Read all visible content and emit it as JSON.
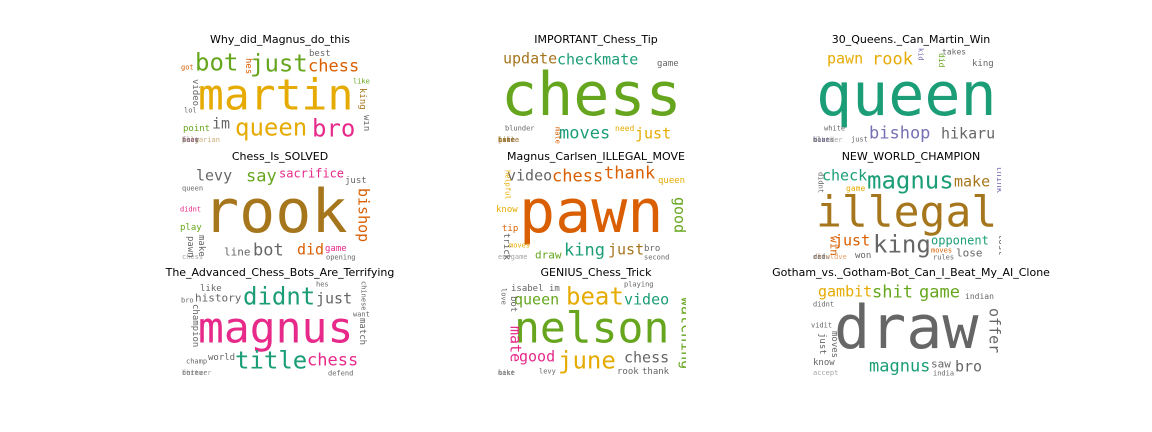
{
  "palette": [
    "#1b9e77",
    "#d95f02",
    "#7570b3",
    "#e7298a",
    "#66a61e",
    "#e6ab02",
    "#a6761d",
    "#666666"
  ],
  "panels": [
    {
      "title": "Why_did_Magnus_do_this",
      "words": [
        {
          "text": "martin",
          "color": "#e6ab02",
          "weight": 5
        },
        {
          "text": "just",
          "color": "#66a61e",
          "weight": 4
        },
        {
          "text": "queen",
          "color": "#e6ab02",
          "weight": 4
        },
        {
          "text": "bot",
          "color": "#66a61e",
          "weight": 3
        },
        {
          "text": "bro",
          "color": "#e7298a",
          "weight": 3
        },
        {
          "text": "chess",
          "color": "#d95f02",
          "weight": 3
        },
        {
          "text": "im",
          "color": "#666666",
          "weight": 2
        },
        {
          "text": "king",
          "color": "#a6761d",
          "weight": 1
        },
        {
          "text": "bulgarian",
          "color": "#a6761d",
          "weight": 1
        },
        {
          "text": "best",
          "color": "#666666",
          "weight": 1
        },
        {
          "text": "point",
          "color": "#66a61e",
          "weight": 1
        },
        {
          "text": "video",
          "color": "#666666",
          "weight": 1
        },
        {
          "text": "like",
          "color": "#66a61e",
          "weight": 1
        },
        {
          "text": "lol",
          "color": "#666666",
          "weight": 1
        },
        {
          "text": "play",
          "color": "#666666",
          "weight": 1
        },
        {
          "text": "hes",
          "color": "#d95f02",
          "weight": 1
        },
        {
          "text": "fear",
          "color": "#e7298a",
          "weight": 1
        },
        {
          "text": "know",
          "color": "#666666",
          "weight": 1
        },
        {
          "text": "got",
          "color": "#d95f02",
          "weight": 1
        },
        {
          "text": "win",
          "color": "#666666",
          "weight": 1
        },
        {
          "text": "fact",
          "color": "#666666",
          "weight": 1
        }
      ]
    },
    {
      "title": "IMPORTANT_Chess_Tip",
      "words": [
        {
          "text": "chess",
          "color": "#66a61e",
          "weight": 5
        },
        {
          "text": "moves",
          "color": "#1b9e77",
          "weight": 4
        },
        {
          "text": "checkmate",
          "color": "#1b9e77",
          "weight": 2
        },
        {
          "text": "piece",
          "color": "#7570b3",
          "weight": 2
        },
        {
          "text": "update",
          "color": "#a6761d",
          "weight": 2
        },
        {
          "text": "just",
          "color": "#e6ab02",
          "weight": 2
        },
        {
          "text": "need",
          "color": "#e6ab02",
          "weight": 2
        },
        {
          "text": "mate",
          "color": "#d95f02",
          "weight": 2
        },
        {
          "text": "game",
          "color": "#666666",
          "weight": 1
        },
        {
          "text": "blunder",
          "color": "#666666",
          "weight": 1
        },
        {
          "text": "turn",
          "color": "#666666",
          "weight": 1
        },
        {
          "text": "bro",
          "color": "#e6ab02",
          "weight": 1
        },
        {
          "text": "like",
          "color": "#a6761d",
          "weight": 1
        },
        {
          "text": "gonna",
          "color": "#a6761d",
          "weight": 1
        },
        {
          "text": "life",
          "color": "#666666",
          "weight": 1
        },
        {
          "text": "isnt",
          "color": "#666666",
          "weight": 1
        },
        {
          "text": "table",
          "color": "#a6761d",
          "weight": 1
        },
        {
          "text": "base",
          "color": "#a6761d",
          "weight": 1
        }
      ]
    },
    {
      "title": "30_Queens._Can_Martin_Win",
      "words": [
        {
          "text": "queen",
          "color": "#1b9e77",
          "weight": 5
        },
        {
          "text": "bishop",
          "color": "#7570b3",
          "weight": 4
        },
        {
          "text": "rook",
          "color": "#e6ab02",
          "weight": 3
        },
        {
          "text": "did",
          "color": "#66a61e",
          "weight": 2
        },
        {
          "text": "pawn",
          "color": "#e6ab02",
          "weight": 2
        },
        {
          "text": "hikaru",
          "color": "#666666",
          "weight": 2
        },
        {
          "text": "takes",
          "color": "#666666",
          "weight": 2
        },
        {
          "text": "moves",
          "color": "#666666",
          "weight": 1
        },
        {
          "text": "king",
          "color": "#666666",
          "weight": 1
        },
        {
          "text": "white",
          "color": "#666666",
          "weight": 1
        },
        {
          "text": "just",
          "color": "#666666",
          "weight": 1
        },
        {
          "text": "kid",
          "color": "#7570b3",
          "weight": 1
        },
        {
          "text": "blunder",
          "color": "#666666",
          "weight": 1
        },
        {
          "text": "black",
          "color": "#666666",
          "weight": 1
        },
        {
          "text": "dont",
          "color": "#666666",
          "weight": 1
        },
        {
          "text": "like",
          "color": "#7570b3",
          "weight": 1
        }
      ]
    },
    {
      "title": "Chess_Is_SOLVED",
      "words": [
        {
          "text": "rook",
          "color": "#a6761d",
          "weight": 5
        },
        {
          "text": "bot",
          "color": "#666666",
          "weight": 4
        },
        {
          "text": "say",
          "color": "#66a61e",
          "weight": 3
        },
        {
          "text": "sacrifice",
          "color": "#e7298a",
          "weight": 3
        },
        {
          "text": "did",
          "color": "#d95f02",
          "weight": 2
        },
        {
          "text": "levy",
          "color": "#666666",
          "weight": 2
        },
        {
          "text": "line",
          "color": "#666666",
          "weight": 2
        },
        {
          "text": "bishop",
          "color": "#d95f02",
          "weight": 2
        },
        {
          "text": "game",
          "color": "#e7298a",
          "weight": 1
        },
        {
          "text": "didnt",
          "color": "#e7298a",
          "weight": 1
        },
        {
          "text": "play",
          "color": "#66a61e",
          "weight": 1
        },
        {
          "text": "make",
          "color": "#666666",
          "weight": 1
        },
        {
          "text": "just",
          "color": "#666666",
          "weight": 1
        },
        {
          "text": "opening",
          "color": "#666666",
          "weight": 1
        },
        {
          "text": "queen",
          "color": "#666666",
          "weight": 1
        },
        {
          "text": "pawn",
          "color": "#666666",
          "weight": 1
        },
        {
          "text": "chess",
          "color": "#666666",
          "weight": 1
        }
      ]
    },
    {
      "title": "Magnus_Carlsen_ILLEGAL_MOVE",
      "words": [
        {
          "text": "pawn",
          "color": "#d95f02",
          "weight": 5
        },
        {
          "text": "king",
          "color": "#1b9e77",
          "weight": 4
        },
        {
          "text": "chess",
          "color": "#d95f02",
          "weight": 3
        },
        {
          "text": "thank",
          "color": "#d95f02",
          "weight": 3
        },
        {
          "text": "just",
          "color": "#a6761d",
          "weight": 2
        },
        {
          "text": "video",
          "color": "#666666",
          "weight": 2
        },
        {
          "text": "draw",
          "color": "#66a61e",
          "weight": 2
        },
        {
          "text": "good",
          "color": "#66a61e",
          "weight": 2
        },
        {
          "text": "queen",
          "color": "#e6ab02",
          "weight": 1
        },
        {
          "text": "know",
          "color": "#e6ab02",
          "weight": 1
        },
        {
          "text": "moves",
          "color": "#e6ab02",
          "weight": 1
        },
        {
          "text": "helpful",
          "color": "#e6ab02",
          "weight": 1
        },
        {
          "text": "bro",
          "color": "#666666",
          "weight": 1
        },
        {
          "text": "tip",
          "color": "#d95f02",
          "weight": 1
        },
        {
          "text": "endgame",
          "color": "#666666",
          "weight": 1
        },
        {
          "text": "trick",
          "color": "#666666",
          "weight": 1
        },
        {
          "text": "second",
          "color": "#666666",
          "weight": 1
        }
      ]
    },
    {
      "title": "NEW_WORLD_CHAMPION",
      "words": [
        {
          "text": "illegal",
          "color": "#a6761d",
          "weight": 5
        },
        {
          "text": "magnus",
          "color": "#1b9e77",
          "weight": 4
        },
        {
          "text": "king",
          "color": "#666666",
          "weight": 3
        },
        {
          "text": "opponent",
          "color": "#1b9e77",
          "weight": 3
        },
        {
          "text": "just",
          "color": "#d95f02",
          "weight": 2
        },
        {
          "text": "moves",
          "color": "#d95f02",
          "weight": 1
        },
        {
          "text": "check",
          "color": "#1b9e77",
          "weight": 2
        },
        {
          "text": "make",
          "color": "#a6761d",
          "weight": 2
        },
        {
          "text": "win",
          "color": "#d95f02",
          "weight": 2
        },
        {
          "text": "lose",
          "color": "#666666",
          "weight": 2
        },
        {
          "text": "game",
          "color": "#e6ab02",
          "weight": 2
        },
        {
          "text": "think",
          "color": "#7570b3",
          "weight": 1
        },
        {
          "text": "shouldve",
          "color": "#d95f02",
          "weight": 1
        },
        {
          "text": "won",
          "color": "#666666",
          "weight": 1
        },
        {
          "text": "rules",
          "color": "#666666",
          "weight": 1
        },
        {
          "text": "didnt",
          "color": "#666666",
          "weight": 1
        },
        {
          "text": "draw",
          "color": "#666666",
          "weight": 1
        },
        {
          "text": "did",
          "color": "#666666",
          "weight": 1
        },
        {
          "text": "ref",
          "color": "#666666",
          "weight": 1
        },
        {
          "text": "lost",
          "color": "#666666",
          "weight": 1
        }
      ]
    },
    {
      "title": "The_Advanced_Chess_Bots_Are_Terrifying",
      "words": [
        {
          "text": "magnus",
          "color": "#e7298a",
          "weight": 5
        },
        {
          "text": "didnt",
          "color": "#1b9e77",
          "weight": 4
        },
        {
          "text": "title",
          "color": "#1b9e77",
          "weight": 3
        },
        {
          "text": "chess",
          "color": "#e7298a",
          "weight": 3
        },
        {
          "text": "history",
          "color": "#666666",
          "weight": 2
        },
        {
          "text": "just",
          "color": "#666666",
          "weight": 2
        },
        {
          "text": "world",
          "color": "#666666",
          "weight": 1
        },
        {
          "text": "champion",
          "color": "#666666",
          "weight": 1
        },
        {
          "text": "like",
          "color": "#666666",
          "weight": 1
        },
        {
          "text": "defend",
          "color": "#666666",
          "weight": 1
        },
        {
          "text": "champ",
          "color": "#666666",
          "weight": 1
        },
        {
          "text": "match",
          "color": "#666666",
          "weight": 1
        },
        {
          "text": "better",
          "color": "#666666",
          "weight": 1
        },
        {
          "text": "want",
          "color": "#666666",
          "weight": 1
        },
        {
          "text": "hes",
          "color": "#666666",
          "weight": 1
        },
        {
          "text": "chinese",
          "color": "#666666",
          "weight": 1
        },
        {
          "text": "china",
          "color": "#666666",
          "weight": 1
        },
        {
          "text": "forever",
          "color": "#666666",
          "weight": 1
        },
        {
          "text": "bro",
          "color": "#666666",
          "weight": 1
        }
      ]
    },
    {
      "title": "GENIUS_Chess_Trick",
      "words": [
        {
          "text": "nelson",
          "color": "#66a61e",
          "weight": 5
        },
        {
          "text": "beat",
          "color": "#e6ab02",
          "weight": 4
        },
        {
          "text": "june",
          "color": "#e6ab02",
          "weight": 4
        },
        {
          "text": "watching",
          "color": "#66a61e",
          "weight": 2
        },
        {
          "text": "queen",
          "color": "#66a61e",
          "weight": 2
        },
        {
          "text": "video",
          "color": "#1b9e77",
          "weight": 2
        },
        {
          "text": "good",
          "color": "#e7298a",
          "weight": 2
        },
        {
          "text": "mate",
          "color": "#e7298a",
          "weight": 2
        },
        {
          "text": "chess",
          "color": "#666666",
          "weight": 2
        },
        {
          "text": "isabel",
          "color": "#666666",
          "weight": 1
        },
        {
          "text": "thank",
          "color": "#666666",
          "weight": 1
        },
        {
          "text": "bot",
          "color": "#666666",
          "weight": 1
        },
        {
          "text": "im",
          "color": "#666666",
          "weight": 1
        },
        {
          "text": "playing",
          "color": "#666666",
          "weight": 1
        },
        {
          "text": "rook",
          "color": "#666666",
          "weight": 1
        },
        {
          "text": "love",
          "color": "#666666",
          "weight": 1
        },
        {
          "text": "levy",
          "color": "#666666",
          "weight": 1
        },
        {
          "text": "best",
          "color": "#666666",
          "weight": 1
        },
        {
          "text": "like",
          "color": "#666666",
          "weight": 1
        },
        {
          "text": "make",
          "color": "#666666",
          "weight": 1
        }
      ]
    },
    {
      "title": "Gotham_vs._Gotham-Bot_Can_I_Beat_My_AI_Clone",
      "words": [
        {
          "text": "draw",
          "color": "#666666",
          "weight": 5
        },
        {
          "text": "magnus",
          "color": "#1b9e77",
          "weight": 4
        },
        {
          "text": "shit",
          "color": "#66a61e",
          "weight": 3
        },
        {
          "text": "game",
          "color": "#66a61e",
          "weight": 3
        },
        {
          "text": "gambit",
          "color": "#e6ab02",
          "weight": 2
        },
        {
          "text": "bro",
          "color": "#666666",
          "weight": 2
        },
        {
          "text": "saw",
          "color": "#666666",
          "weight": 2
        },
        {
          "text": "offer",
          "color": "#666666",
          "weight": 2
        },
        {
          "text": "indian",
          "color": "#666666",
          "weight": 2
        },
        {
          "text": "india",
          "color": "#666666",
          "weight": 1
        },
        {
          "text": "vidit",
          "color": "#666666",
          "weight": 1
        },
        {
          "text": "moves",
          "color": "#666666",
          "weight": 1
        },
        {
          "text": "know",
          "color": "#666666",
          "weight": 1
        },
        {
          "text": "didnt",
          "color": "#666666",
          "weight": 1
        },
        {
          "text": "accept",
          "color": "#666666",
          "weight": 1
        },
        {
          "text": "just",
          "color": "#666666",
          "weight": 1
        }
      ]
    }
  ]
}
